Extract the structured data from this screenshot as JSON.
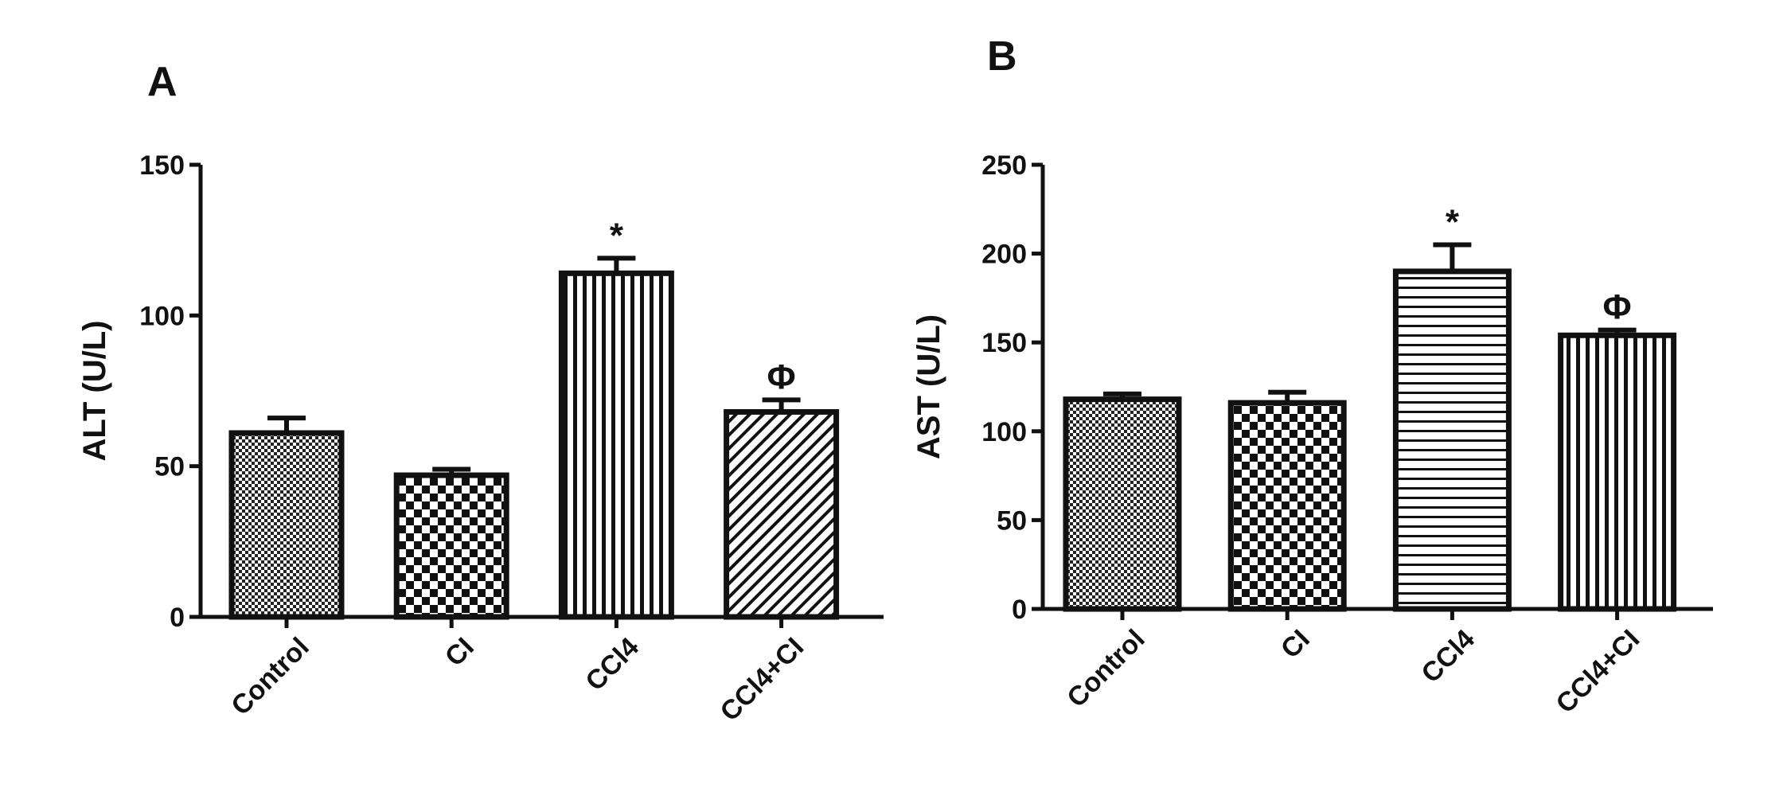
{
  "chart_data": [
    {
      "type": "bar",
      "panel_label": "A",
      "title": "",
      "xlabel": "",
      "ylabel": "ALT (U/L)",
      "ylim": [
        0,
        150
      ],
      "yticks": [
        0,
        50,
        100,
        150
      ],
      "categories": [
        "Control",
        "CI",
        "CCl4",
        "CCl4+CI"
      ],
      "values": [
        61,
        47,
        114,
        68
      ],
      "errors": [
        5,
        2,
        5,
        4
      ],
      "annotations": [
        "",
        "",
        "*",
        "Φ"
      ],
      "patterns": [
        "fine-check",
        "check",
        "vertical-lines",
        "diagonal-lines"
      ],
      "grid": false,
      "legend": "none"
    },
    {
      "type": "bar",
      "panel_label": "B",
      "title": "",
      "xlabel": "",
      "ylabel": "AST (U/L)",
      "ylim": [
        0,
        250
      ],
      "yticks": [
        0,
        50,
        100,
        150,
        200,
        250
      ],
      "categories": [
        "Control",
        "CI",
        "CCl4",
        "CCl4+CI"
      ],
      "values": [
        118,
        116,
        190,
        154
      ],
      "errors": [
        3,
        6,
        15,
        3
      ],
      "annotations": [
        "",
        "",
        "*",
        "Φ"
      ],
      "patterns": [
        "fine-check",
        "check",
        "horizontal-lines",
        "vertical-lines"
      ],
      "grid": false,
      "legend": "none"
    }
  ]
}
